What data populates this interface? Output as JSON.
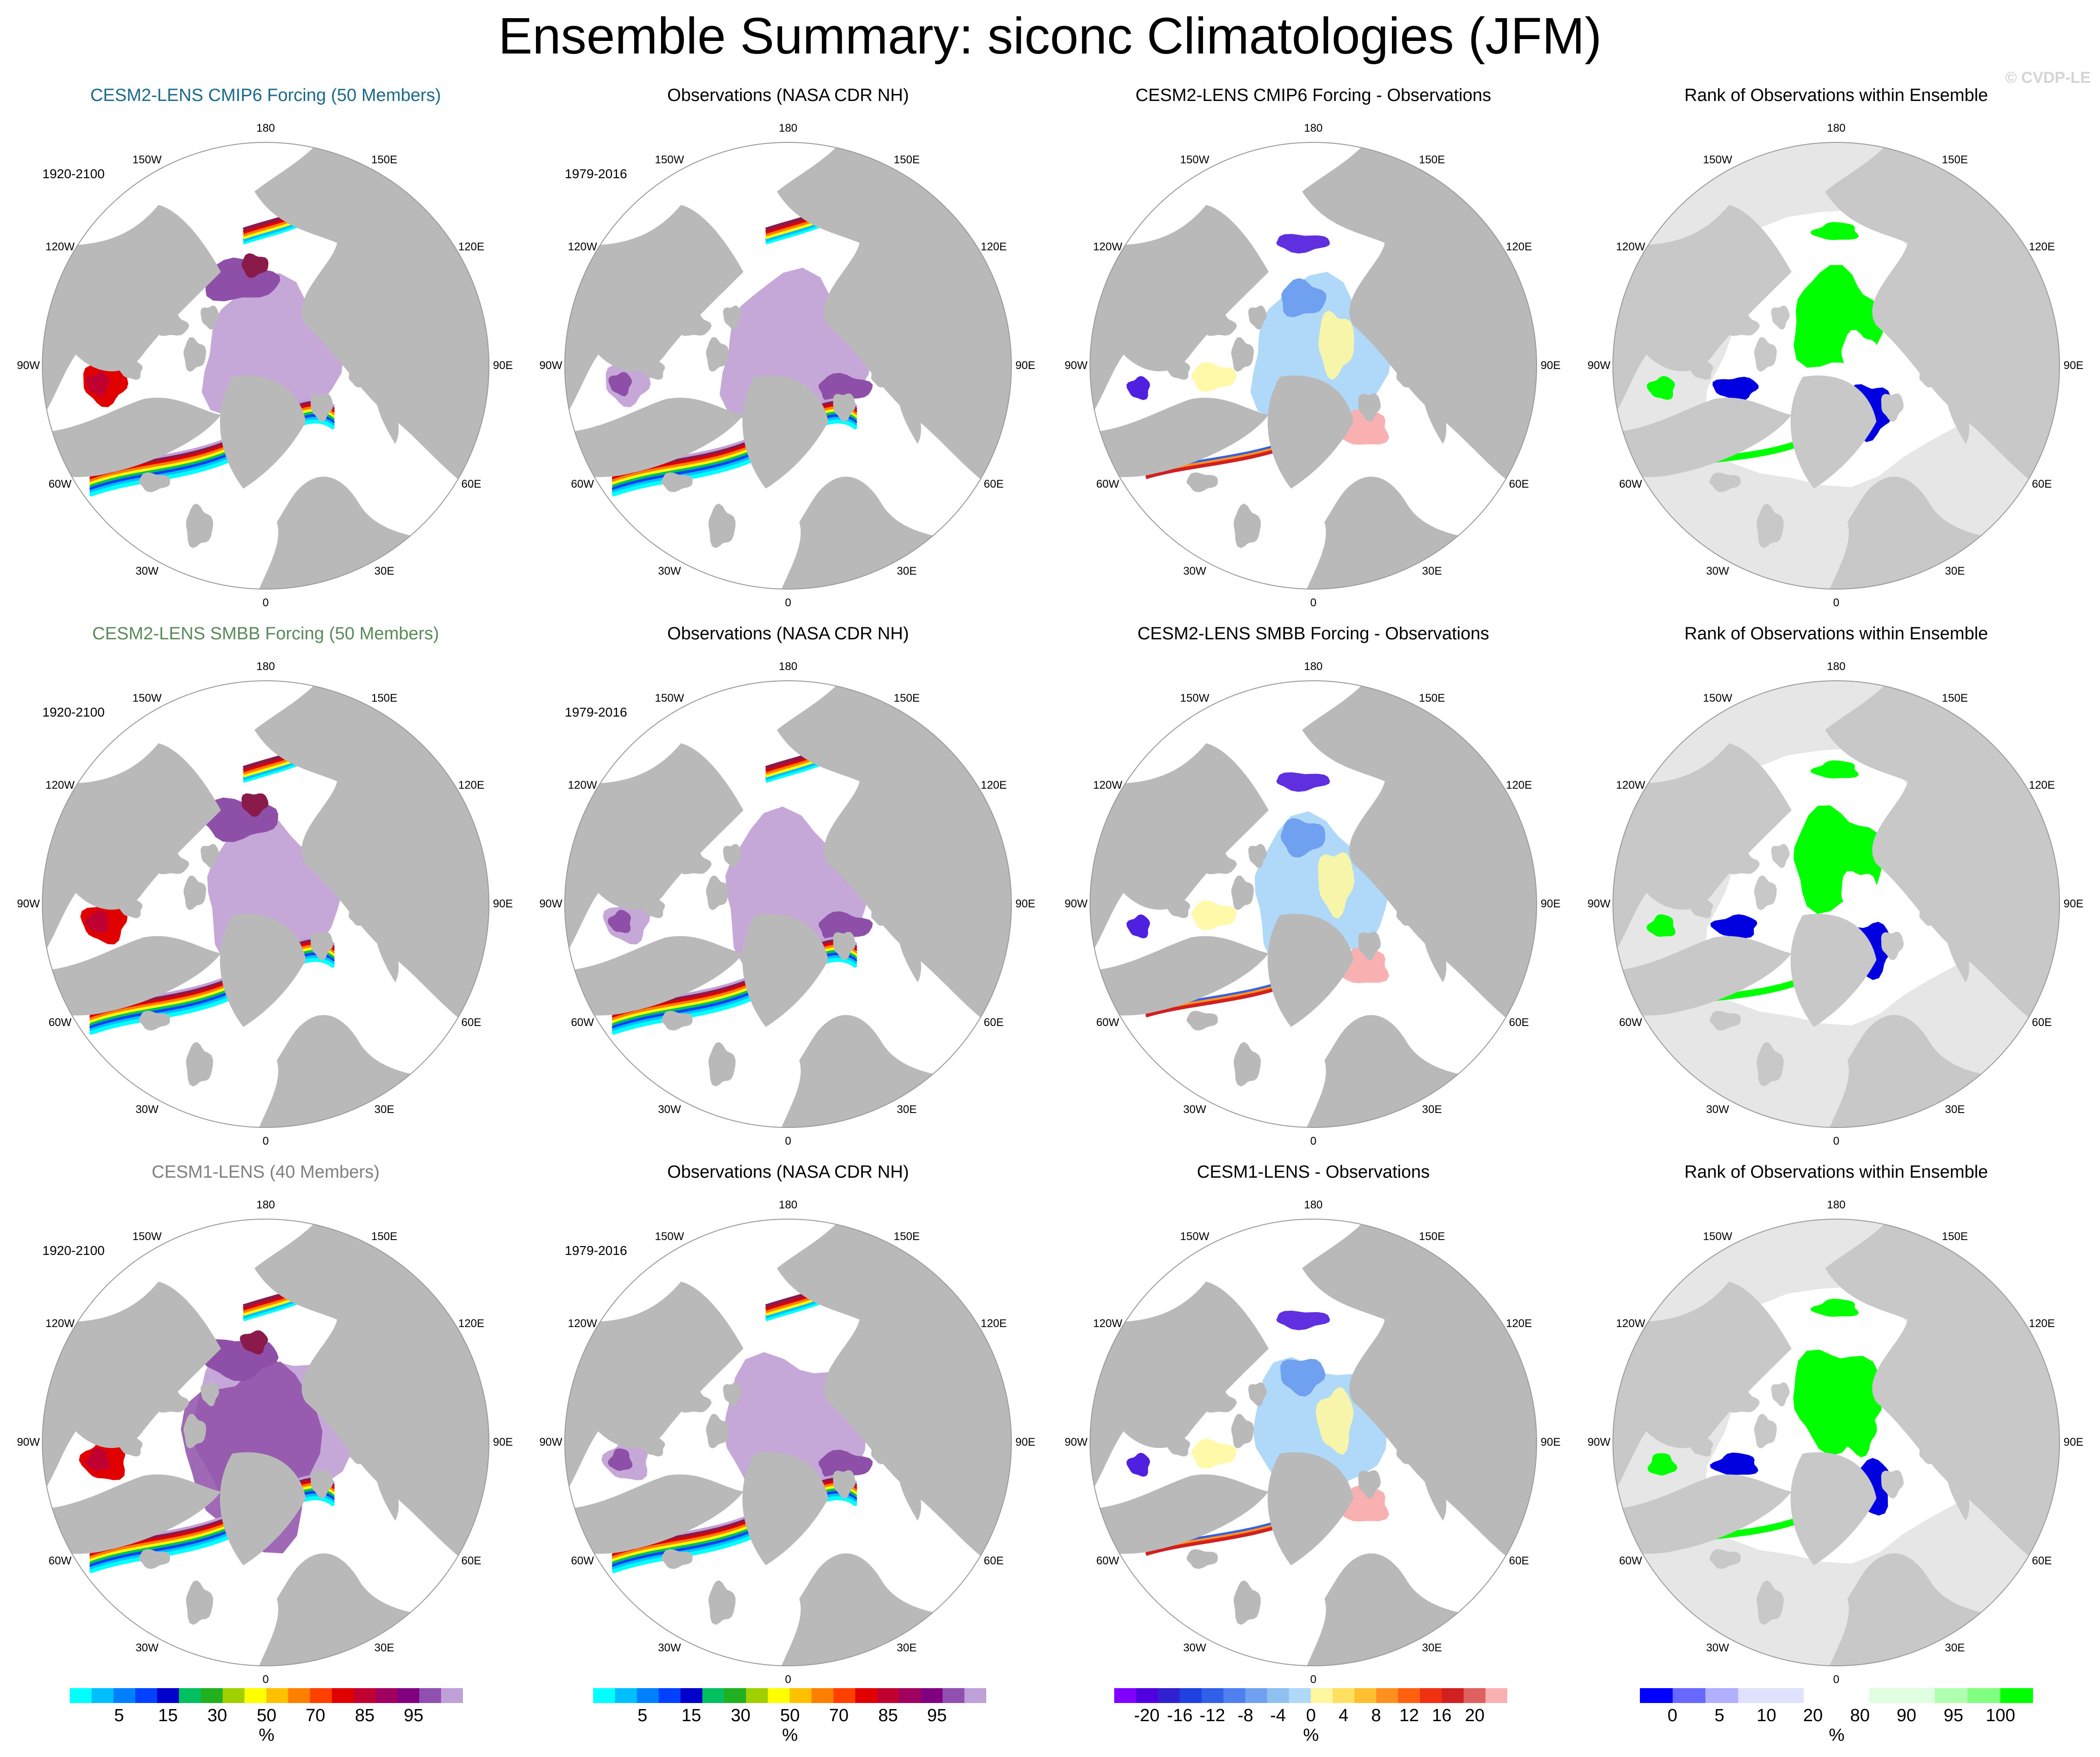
{
  "header": {
    "title": "Ensemble Summary: siconc Climatologies (JFM)",
    "watermark": "© CVDP-LE"
  },
  "colors": {
    "land": "#b9b9b9",
    "ocean": "#ffffff",
    "rank_background": "#e6e6e6",
    "title_cmip6": "#1b6a8a",
    "title_smbb": "#5a8a5a",
    "title_cesm1": "#808080",
    "title_default": "#000000"
  },
  "lon_labels": [
    "180",
    "150E",
    "120E",
    "90E",
    "60E",
    "30E",
    "0",
    "30W",
    "60W",
    "90W",
    "120W",
    "150W"
  ],
  "rows": [
    {
      "panels": [
        {
          "kind": "model",
          "title": "CESM2-LENS CMIP6 Forcing (50 Members)",
          "title_color": "#1b6a8a",
          "period": "1920-2100",
          "variant": 0
        },
        {
          "kind": "obs",
          "title": "Observations (NASA CDR NH)",
          "title_color": "#000000",
          "period": "1979-2016",
          "variant": 0
        },
        {
          "kind": "diff",
          "title": "CESM2-LENS CMIP6 Forcing - Observations",
          "title_color": "#000000",
          "period": "",
          "variant": 0
        },
        {
          "kind": "rank",
          "title": "Rank of Observations within Ensemble",
          "title_color": "#000000",
          "period": "",
          "variant": 0
        }
      ]
    },
    {
      "panels": [
        {
          "kind": "model",
          "title": "CESM2-LENS SMBB Forcing (50 Members)",
          "title_color": "#5a8a5a",
          "period": "1920-2100",
          "variant": 1
        },
        {
          "kind": "obs",
          "title": "Observations (NASA CDR NH)",
          "title_color": "#000000",
          "period": "1979-2016",
          "variant": 1
        },
        {
          "kind": "diff",
          "title": "CESM2-LENS SMBB Forcing - Observations",
          "title_color": "#000000",
          "period": "",
          "variant": 1
        },
        {
          "kind": "rank",
          "title": "Rank of Observations within Ensemble",
          "title_color": "#000000",
          "period": "",
          "variant": 1
        }
      ]
    },
    {
      "panels": [
        {
          "kind": "model",
          "title": "CESM1-LENS (40 Members)",
          "title_color": "#808080",
          "period": "1920-2100",
          "variant": 2
        },
        {
          "kind": "obs",
          "title": "Observations (NASA CDR NH)",
          "title_color": "#000000",
          "period": "1979-2016",
          "variant": 2
        },
        {
          "kind": "diff",
          "title": "CESM1-LENS - Observations",
          "title_color": "#000000",
          "period": "",
          "variant": 2
        },
        {
          "kind": "rank",
          "title": "Rank of Observations within Ensemble",
          "title_color": "#000000",
          "period": "",
          "variant": 2
        }
      ]
    }
  ],
  "colorbars": [
    {
      "name": "siconc-colorbar-1",
      "colors": [
        "#00ffff",
        "#00bfff",
        "#0080ff",
        "#0040ff",
        "#0000cd",
        "#00c060",
        "#20b020",
        "#a0d000",
        "#ffff00",
        "#ffc000",
        "#ff8000",
        "#ff4000",
        "#e00000",
        "#c00030",
        "#a00060",
        "#800080",
        "#9050b0",
        "#c0a0d8"
      ],
      "ticks": [
        "5",
        "15",
        "30",
        "50",
        "70",
        "85",
        "95"
      ],
      "unit": "%"
    },
    {
      "name": "siconc-colorbar-2",
      "colors": [
        "#00ffff",
        "#00bfff",
        "#0080ff",
        "#0040ff",
        "#0000cd",
        "#00c060",
        "#20b020",
        "#a0d000",
        "#ffff00",
        "#ffc000",
        "#ff8000",
        "#ff4000",
        "#e00000",
        "#c00030",
        "#a00060",
        "#800080",
        "#9050b0",
        "#c0a0d8"
      ],
      "ticks": [
        "5",
        "15",
        "30",
        "50",
        "70",
        "85",
        "95"
      ],
      "unit": "%"
    },
    {
      "name": "difference-colorbar",
      "colors": [
        "#8000ff",
        "#5000e0",
        "#3020d0",
        "#2040e0",
        "#3060e8",
        "#5080f0",
        "#70a0f0",
        "#90c0f0",
        "#b0d8f8",
        "#fff8a0",
        "#ffe060",
        "#ffc030",
        "#ff9020",
        "#ff6010",
        "#f03010",
        "#d02020",
        "#e06060",
        "#f8b0b0"
      ],
      "ticks": [
        "-20",
        "-16",
        "-12",
        "-8",
        "-4",
        "0",
        "4",
        "8",
        "12",
        "16",
        "20"
      ],
      "unit": "%"
    },
    {
      "name": "rank-colorbar",
      "colors": [
        "#0000ff",
        "#6868ff",
        "#b0b0ff",
        "#e0e0ff",
        "#e0e0ff",
        "#ffffff",
        "#ffffff",
        "#e0ffe0",
        "#e0ffe0",
        "#b0ffb0",
        "#80ff80",
        "#00ff00"
      ],
      "ticks": [
        "0",
        "5",
        "10",
        "20",
        "80",
        "90",
        "95",
        "100"
      ],
      "unit": "%"
    }
  ]
}
